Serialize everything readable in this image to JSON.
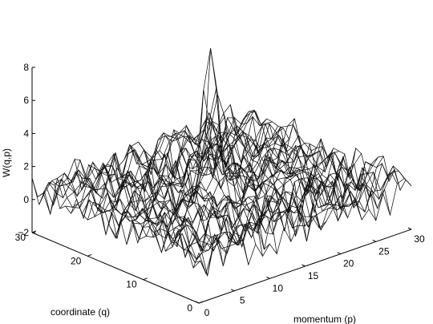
{
  "chart_data": {
    "type": "surface",
    "zlabel": "W(q,p)",
    "xlabel": "momentum (p)",
    "ylabel": "coordinate (q)",
    "x_ticks": [
      0,
      5,
      10,
      15,
      20,
      25,
      30
    ],
    "y_ticks": [
      0,
      10,
      20,
      30
    ],
    "z_ticks": [
      -2,
      0,
      2,
      4,
      6,
      8
    ],
    "x_range": [
      0,
      30
    ],
    "y_range": [
      0,
      30
    ],
    "z_range": [
      -2,
      8
    ],
    "grid": false,
    "baseline_noise_range": [
      -0.8,
      1.8
    ],
    "peaks": [
      {
        "p": 14.5,
        "q": 16.5,
        "w": 7.0
      },
      {
        "p": 16.5,
        "q": 17.5,
        "w": 5.5
      },
      {
        "p": 15.0,
        "q": 17.0,
        "w": 4.5
      },
      {
        "p": 14.0,
        "q": 14.5,
        "w": 3.0
      },
      {
        "p": 13.0,
        "q": 14.0,
        "w": 2.3
      }
    ]
  }
}
